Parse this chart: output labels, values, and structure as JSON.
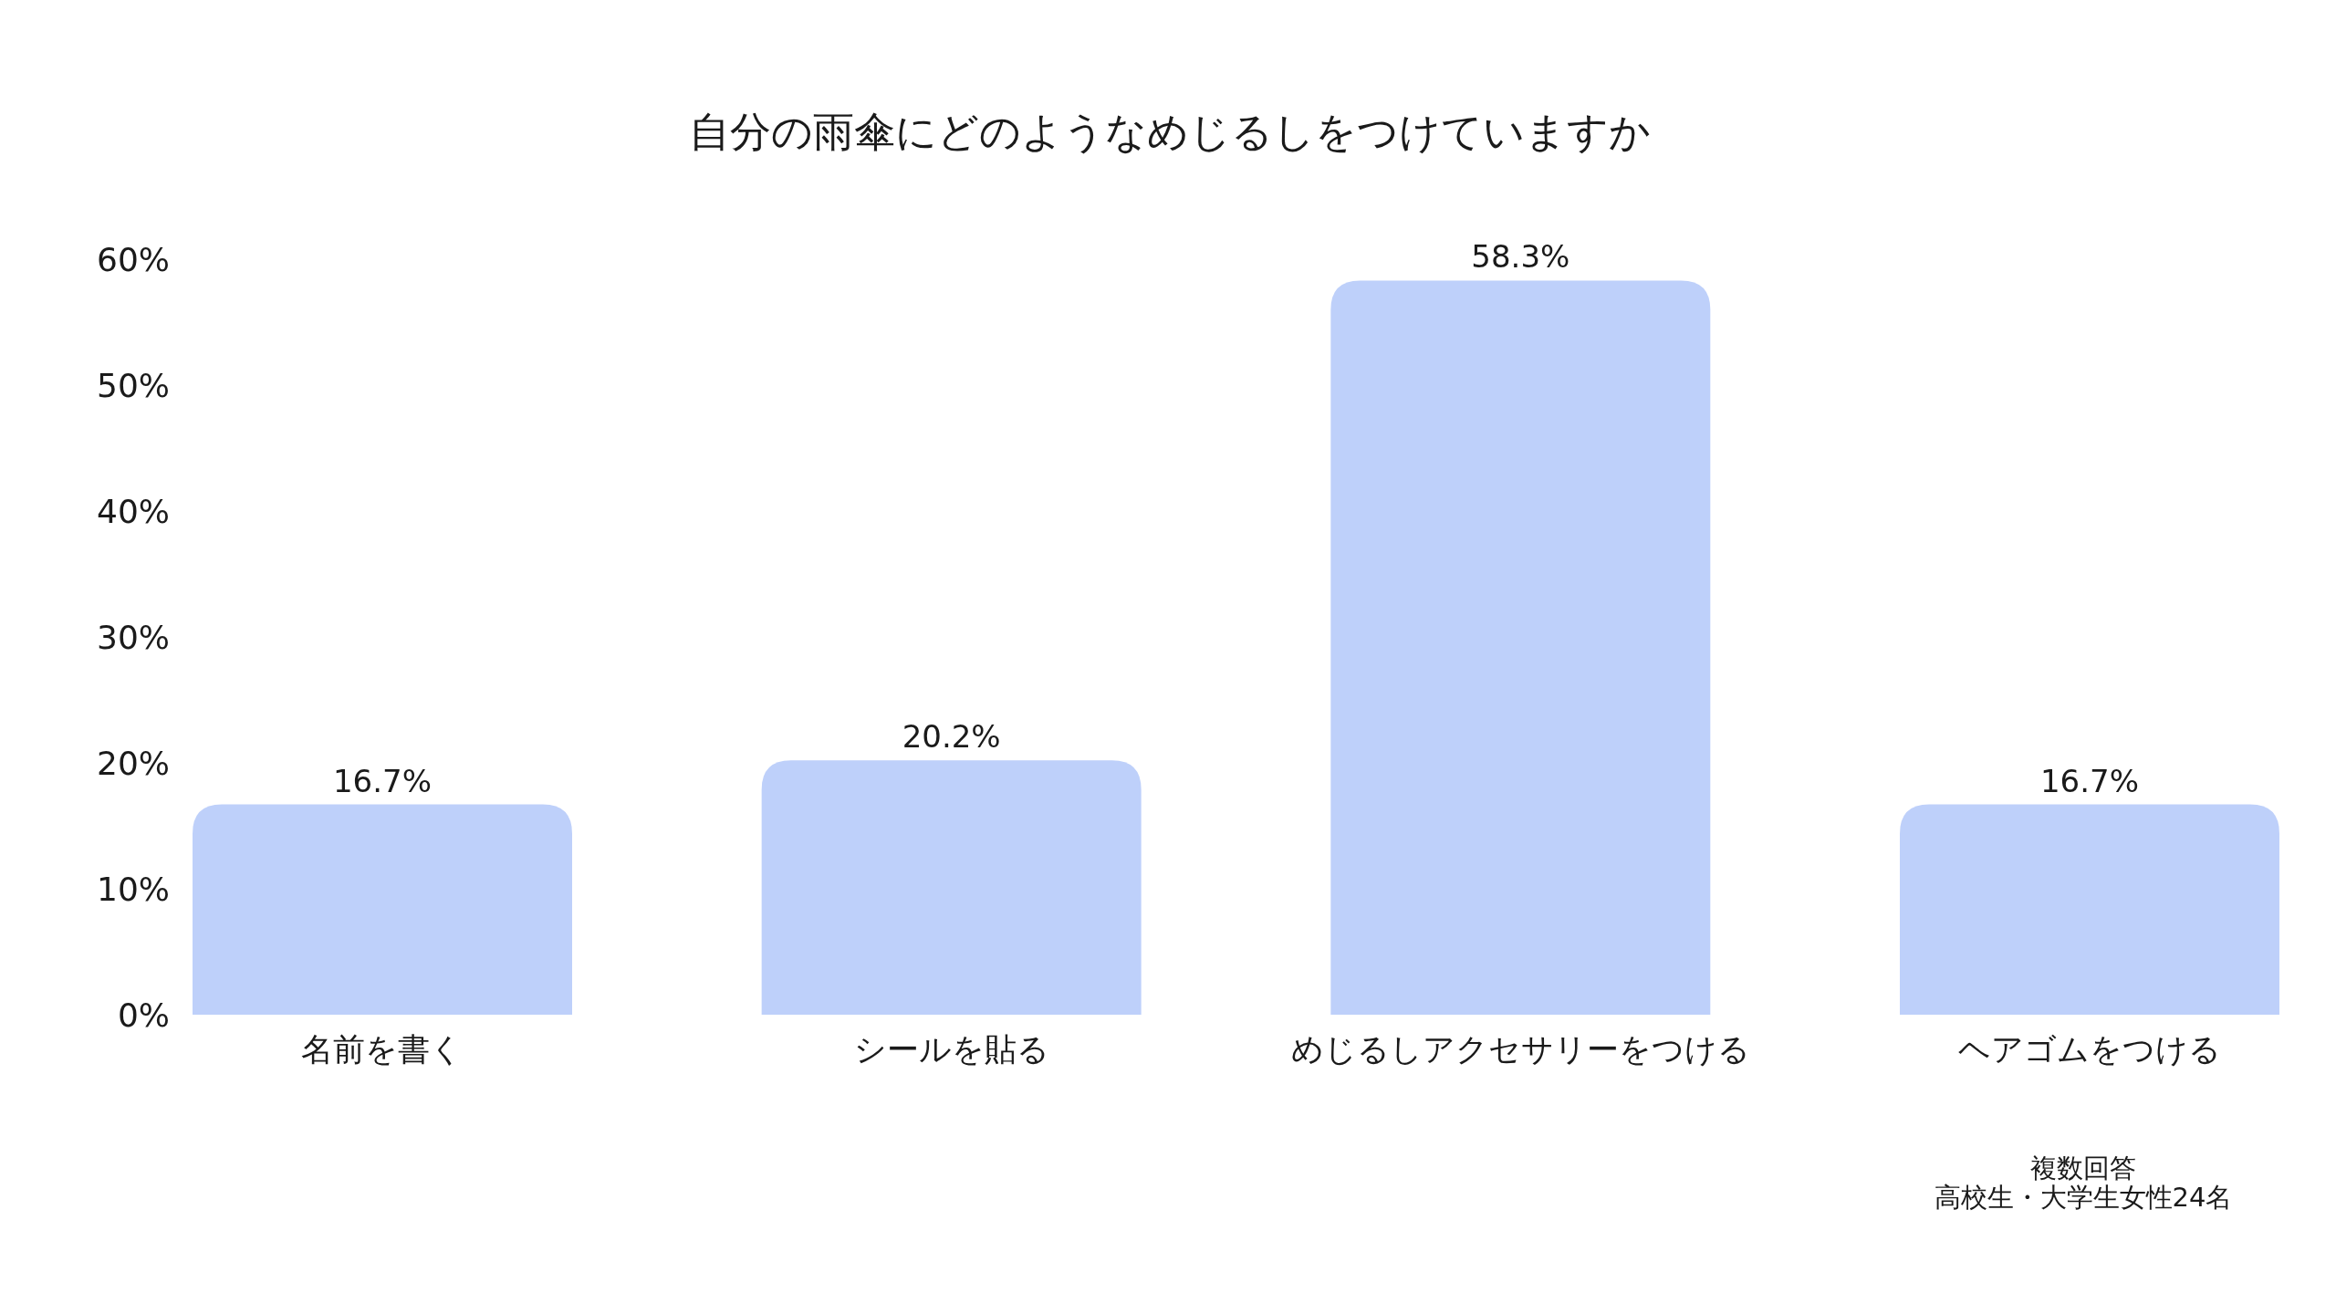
{
  "chart_data": {
    "type": "bar",
    "title": "自分の雨傘にどのようなめじるしをつけていますか",
    "categories": [
      "名前を書く",
      "シールを貼る",
      "めじるしアクセサリーをつける",
      "ヘアゴムをつける"
    ],
    "values": [
      16.7,
      20.2,
      58.3,
      16.7
    ],
    "color": "#bed0fa",
    "value_labels": [
      "16.7%",
      "20.2%",
      "58.3%",
      "16.7%"
    ],
    "ylim": [
      0,
      60
    ],
    "yticks": [
      {
        "value": 0,
        "label": "0%"
      },
      {
        "value": 10,
        "label": "10%"
      },
      {
        "value": 20,
        "label": "20%"
      },
      {
        "value": 30,
        "label": "30%"
      },
      {
        "value": 40,
        "label": "40%"
      },
      {
        "value": 50,
        "label": "50%"
      },
      {
        "value": 60,
        "label": "60%"
      }
    ],
    "annotations": [
      "複数回答",
      "高校生・大学生女性24名"
    ]
  }
}
